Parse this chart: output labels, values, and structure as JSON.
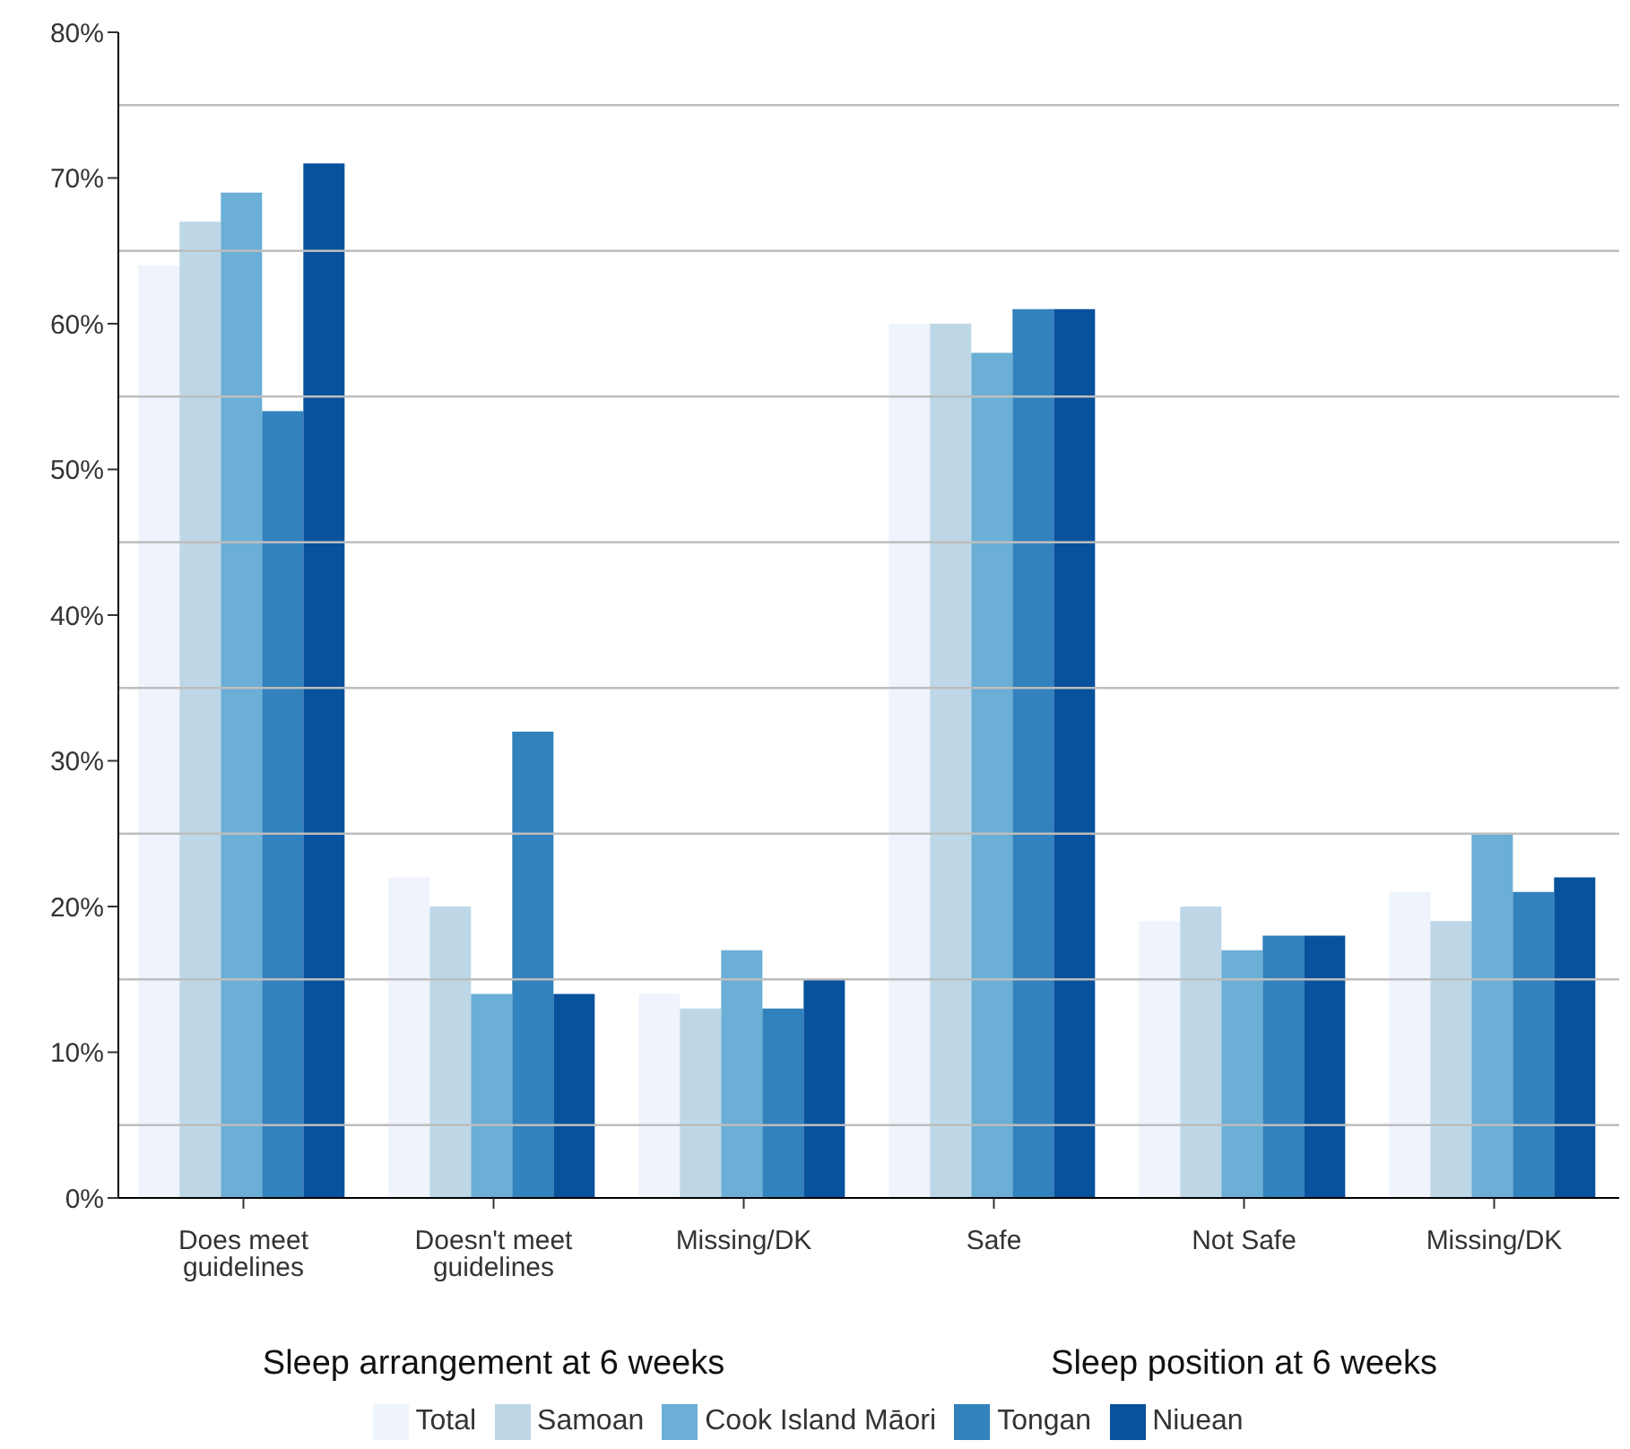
{
  "chart_data": {
    "type": "bar",
    "categories": [
      "Does meet guidelines",
      "Doesn't meet guidelines",
      "Missing/DK",
      "Safe",
      "Not Safe",
      "Missing/DK"
    ],
    "series": [
      {
        "name": "Total",
        "color": "#eef3fc",
        "values": [
          64,
          22,
          14,
          60,
          19,
          21
        ]
      },
      {
        "name": "Samoan",
        "color": "#bdd7e7",
        "values": [
          67,
          20,
          13,
          60,
          20,
          19
        ]
      },
      {
        "name": "Cook Island Māori",
        "color": "#6baed6",
        "values": [
          69,
          14,
          17,
          58,
          17,
          25
        ]
      },
      {
        "name": "Tongan",
        "color": "#3182bd",
        "values": [
          54,
          32,
          13,
          61,
          18,
          21
        ]
      },
      {
        "name": "Niuean",
        "color": "#08519c",
        "values": [
          71,
          14,
          15,
          61,
          18,
          22
        ]
      }
    ],
    "annotations": [
      "Sleep arrangement at 6 weeks",
      "Sleep position at 6 weeks"
    ],
    "ylim": [
      0,
      80
    ],
    "yticks": [
      {
        "value": 0,
        "label": "0%"
      },
      {
        "value": 5,
        "label": null
      },
      {
        "value": 10,
        "label": "10%"
      },
      {
        "value": 15,
        "label": null
      },
      {
        "value": 20,
        "label": "20%"
      },
      {
        "value": 25,
        "label": null
      },
      {
        "value": 30,
        "label": "30%"
      },
      {
        "value": 35,
        "label": null
      },
      {
        "value": 40,
        "label": "40%"
      },
      {
        "value": 45,
        "label": null
      },
      {
        "value": 50,
        "label": "50%"
      },
      {
        "value": 55,
        "label": null
      },
      {
        "value": 60,
        "label": "60%"
      },
      {
        "value": 65,
        "label": null
      },
      {
        "value": 70,
        "label": "70%"
      },
      {
        "value": 75,
        "label": null
      },
      {
        "value": 80,
        "label": "80%"
      }
    ],
    "grid": "y",
    "legend": "bottom"
  }
}
